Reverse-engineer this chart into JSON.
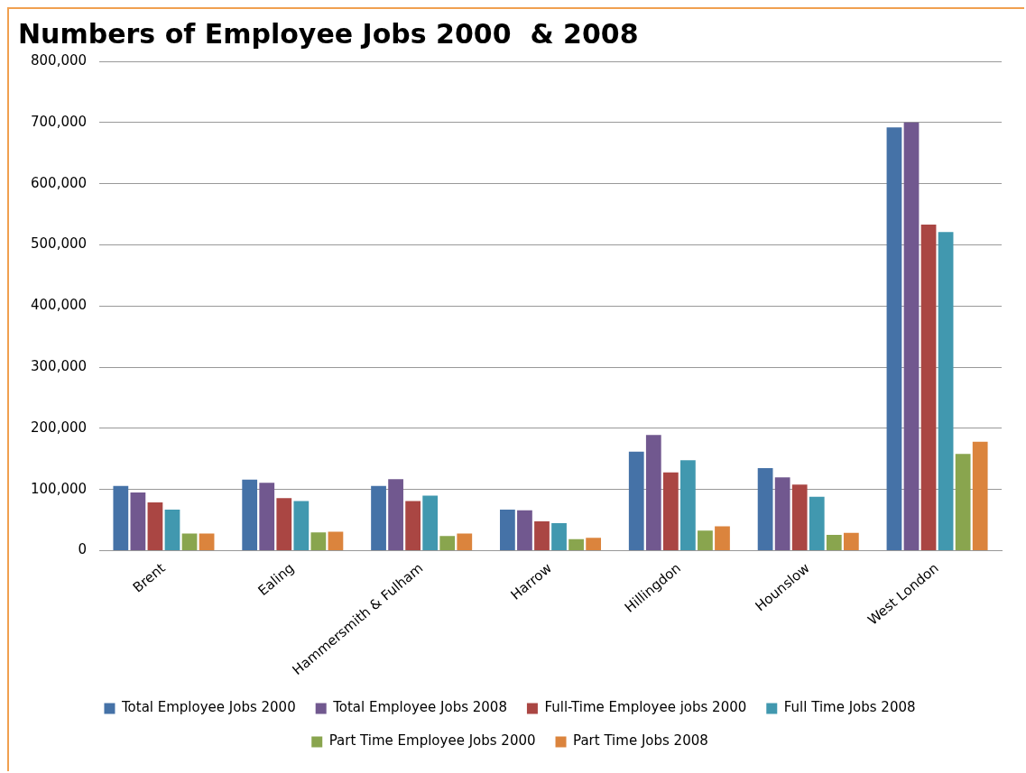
{
  "chart_data": {
    "type": "bar",
    "title": "Numbers of Employee Jobs 2000  & 2008",
    "categories": [
      "Brent",
      "Ealing",
      "Hammersmith & Fulham",
      "Harrow",
      "Hillingdon",
      "Hounslow",
      "West London"
    ],
    "series": [
      {
        "name": "Total Employee Jobs 2000",
        "color": "#4572a7",
        "values": [
          106000,
          116000,
          106000,
          67000,
          162000,
          135000,
          692000
        ]
      },
      {
        "name": "Total Employee Jobs 2008",
        "color": "#71588f",
        "values": [
          95000,
          111000,
          117000,
          66000,
          189000,
          120000,
          700000
        ]
      },
      {
        "name": "Full-Time Employee jobs 2000",
        "color": "#aa4643",
        "values": [
          79000,
          86000,
          81000,
          48000,
          128000,
          108000,
          533000
        ]
      },
      {
        "name": "Full Time Jobs 2008",
        "color": "#4198af",
        "values": [
          67000,
          81000,
          90000,
          45000,
          148000,
          88000,
          521000
        ]
      },
      {
        "name": "Part Time Employee Jobs 2000",
        "color": "#89a54e",
        "values": [
          28000,
          30000,
          24000,
          19000,
          33000,
          26000,
          158000
        ]
      },
      {
        "name": "Part Time Jobs 2008",
        "color": "#db843d",
        "values": [
          28000,
          31000,
          28000,
          21000,
          40000,
          29000,
          178000
        ]
      }
    ],
    "ylim": [
      0,
      800000
    ],
    "yticks": [
      0,
      {
        "value": 100000,
        "label": "100,000"
      },
      {
        "value": 200000,
        "label": "200,000"
      },
      {
        "value": 300000,
        "label": "300,000"
      },
      {
        "value": 400000,
        "label": "400,000"
      },
      {
        "value": 500000,
        "label": "500,000"
      },
      {
        "value": 600000,
        "label": "600,000"
      },
      {
        "value": 700000,
        "label": "700,000"
      },
      {
        "value": 800000,
        "label": "800,000"
      }
    ],
    "grid": "y",
    "legend": "bottom"
  }
}
